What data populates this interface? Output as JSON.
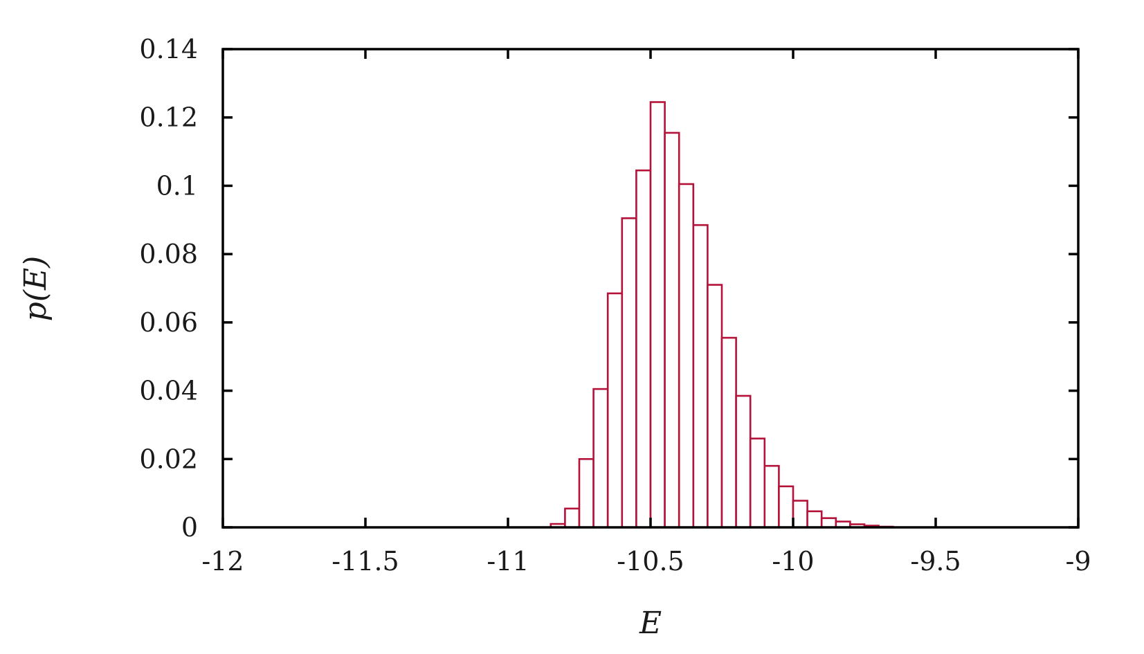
{
  "chart_data": {
    "type": "bar",
    "xlabel": "E",
    "ylabel": "p(E)",
    "xlim": [
      -12,
      -9
    ],
    "ylim": [
      0,
      0.14
    ],
    "xticks": [
      "-12",
      "-11.5",
      "-11",
      "-10.5",
      "-10",
      "-9.5",
      "-9"
    ],
    "yticks": [
      "0",
      "0.02",
      "0.04",
      "0.06",
      "0.08",
      "0.1",
      "0.12",
      "0.14"
    ],
    "xtick_values": [
      -12,
      -11.5,
      -11,
      -10.5,
      -10,
      -9.5,
      -9
    ],
    "ytick_values": [
      0,
      0.02,
      0.04,
      0.06,
      0.08,
      0.1,
      0.12,
      0.14
    ],
    "bin_width": 0.05,
    "bin_starts": [
      -10.85,
      -10.8,
      -10.75,
      -10.7,
      -10.65,
      -10.6,
      -10.55,
      -10.5,
      -10.45,
      -10.4,
      -10.35,
      -10.3,
      -10.25,
      -10.2,
      -10.15,
      -10.1,
      -10.05,
      -10.0,
      -9.95,
      -9.9,
      -9.85,
      -9.8,
      -9.75,
      -9.7
    ],
    "values": [
      0.001,
      0.0055,
      0.02,
      0.0405,
      0.0685,
      0.0905,
      0.1045,
      0.1245,
      0.1155,
      0.1005,
      0.0885,
      0.071,
      0.0555,
      0.0385,
      0.026,
      0.018,
      0.012,
      0.0078,
      0.0047,
      0.0027,
      0.0017,
      0.0009,
      0.0005,
      0.0002
    ],
    "grid": false,
    "colors": {
      "bar_stroke": "#b5123a",
      "frame": "#000000"
    }
  }
}
